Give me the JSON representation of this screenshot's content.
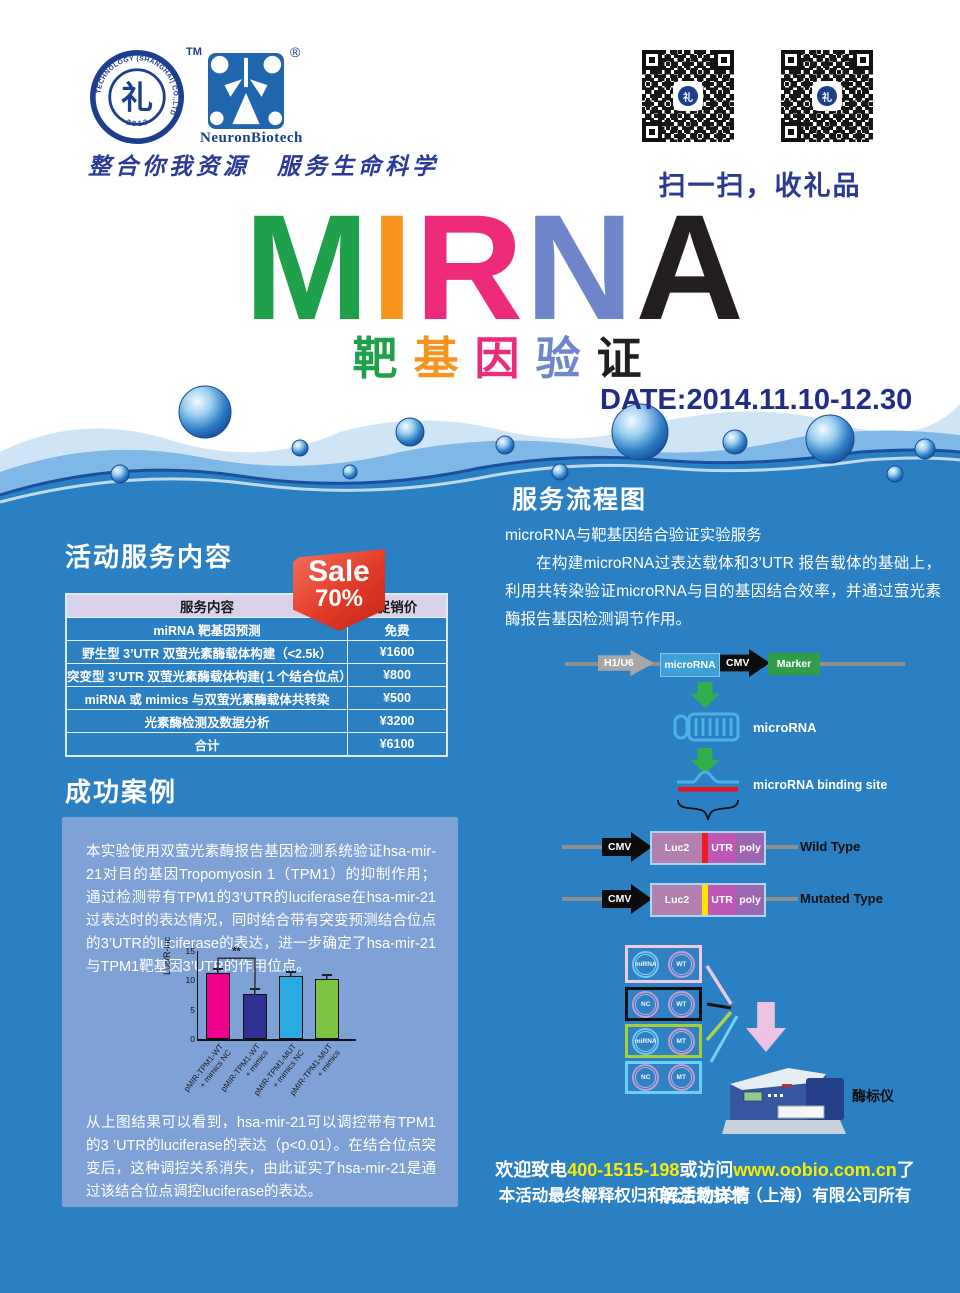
{
  "colors": {
    "page_blue": "#2b7fc3",
    "panel_blue": "#7ea2d5",
    "navy": "#232d87",
    "highlight_yellow": "#f8ec00"
  },
  "header": {
    "obio_logo": {
      "ring_text": "OBIO TECHNOLOGY (SHANGHAI) CO.,LTD",
      "year": "· 2 0 1 3 ·",
      "center_glyph": "礼",
      "tm": "TM"
    },
    "neuron_logo": {
      "name": "NeuronBiotech",
      "registered": "®"
    },
    "slogan": "整合你我资源　服务生命科学",
    "qr_caption": "扫一扫，收礼品",
    "qr_center_glyph": "礼"
  },
  "title": {
    "letters": [
      {
        "ch": "M",
        "color": "#1fa04a"
      },
      {
        "ch": "I",
        "color": "#f7941e"
      },
      {
        "ch": "R",
        "color": "#ee2a7b"
      },
      {
        "ch": "N",
        "color": "#6f86ca"
      },
      {
        "ch": "A",
        "color": "#231f20"
      }
    ],
    "subtitle_chars": [
      {
        "ch": "靶",
        "color": "#1fa04a"
      },
      {
        "ch": "基",
        "color": "#f7941e"
      },
      {
        "ch": "因",
        "color": "#ee2a7b"
      },
      {
        "ch": "验",
        "color": "#6f86ca"
      },
      {
        "ch": "证",
        "color": "#231f20"
      }
    ],
    "date": "DATE:2014.11.10-12.30"
  },
  "pricing": {
    "heading": "活动服务内容",
    "sale_badge": {
      "line1": "Sale",
      "line2": "70%"
    },
    "columns": [
      "服务内容",
      "促销价"
    ],
    "rows": [
      {
        "service": "miRNA 靶基因预测",
        "price": "免费"
      },
      {
        "service": "野生型 3’UTR 双萤光素酶载体构建（<2.5k）",
        "price": "¥1600"
      },
      {
        "service": "突变型 3’UTR 双萤光素酶载体构建(１个结合位点）",
        "price": "¥800"
      },
      {
        "service": "miRNA 或 mimics 与双萤光素酶载体共转染",
        "price": "¥500"
      },
      {
        "service": "光素酶检测及数据分析",
        "price": "¥3200"
      },
      {
        "service": "合计",
        "price": "¥6100"
      }
    ]
  },
  "success": {
    "heading": "成功案例",
    "intro": "本实验使用双萤光素酶报告基因检测系统验证hsa-mir-21对目的基因Tropomyosin 1（TPM1）的抑制作用；通过检测带有TPM1的3’UTR的luciferase在hsa-mir-21过表达时的表达情况，同时结合带有突变预测结合位点的3’UTR的luciferase的表达，进一步确定了hsa-mir-21与TPM1靶基因3’UTR的作用位点。",
    "conclusion": "从上图结果可以看到，hsa-mir-21可以调控带有TPM1的3 ’UTR的luciferase的表达（p<0.01）。在结合位点突变后，这种调控关系消失，由此证实了hsa-mir-21是通过该结合位点调控luciferase的表达。"
  },
  "chart_data": {
    "type": "bar",
    "categories": [
      "pMIR-TPM1-WT\n+ mimics NC",
      "pMIR-TPM1-WT\n+ mimics",
      "pMIR-TPM1-MUT\n+ mimics NC",
      "pMIR-TPM1-MUT\n+ mimics"
    ],
    "values": [
      11.2,
      7.6,
      10.8,
      10.3
    ],
    "errors": [
      0.4,
      0.6,
      0.3,
      0.3
    ],
    "bar_colors": [
      "#ec008c",
      "#2e3192",
      "#29abe2",
      "#7dc242"
    ],
    "title": "",
    "xlabel": "",
    "ylabel": "Luc/R-luc",
    "ylim": [
      0,
      15
    ],
    "yticks": [
      0,
      5,
      10,
      15
    ],
    "grid": false,
    "significance": {
      "between": [
        0,
        1
      ],
      "label": "**"
    }
  },
  "flow": {
    "heading": "服务流程图",
    "desc_line1": "microRNA与靶基因结合验证实验服务",
    "desc_para": "在构建microRNA过表达载体和3’UTR 报告载体的基础上，利用共转染验证microRNA与目的基因结合效率，并通过萤光素酶报告基因检测调节作用。",
    "construct1": {
      "promoter": "H1/U6",
      "gene": "microRNA",
      "promoter2": "CMV",
      "marker": "Marker"
    },
    "mirna_label": "microRNA",
    "binding_label": "microRNA binding site",
    "wild": {
      "promoter": "CMV",
      "gene": "Luc2",
      "utr": "UTR",
      "poly": "poly",
      "label": "Wild Type"
    },
    "mutated": {
      "promoter": "CMV",
      "gene": "Luc2",
      "utr": "UTR",
      "poly": "poly",
      "label": "Mutated Type"
    },
    "plate": {
      "rows": [
        {
          "left": "miRNA",
          "right": "WT",
          "border": "#edc9e5"
        },
        {
          "left": "NC",
          "right": "WT",
          "border": "#111111"
        },
        {
          "left": "miRNA",
          "right": "MT",
          "border": "#a6ce39"
        },
        {
          "left": "NC",
          "right": "MT",
          "border": "#6dcff6"
        }
      ]
    },
    "reader_label": "酶标仪"
  },
  "footer": {
    "call_prefix": "欢迎致电",
    "phone": "400-1515-198",
    "mid": "或访问",
    "url": "www.oobio.com.cn",
    "suffix": "了解活动详情",
    "line2": "本活动最终解释权归和元生物技术（上海）有限公司所有"
  }
}
